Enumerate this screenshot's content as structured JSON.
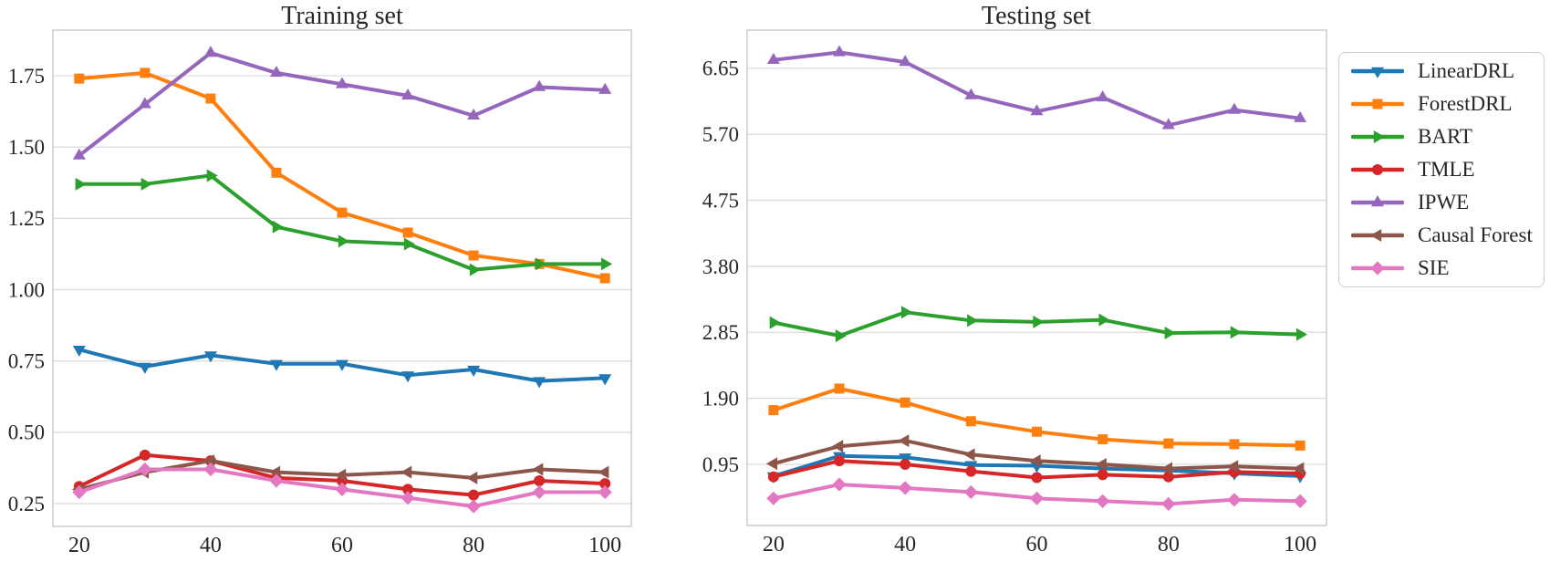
{
  "style": {
    "background": "#ffffff",
    "grid_color": "#dcdcdc",
    "spine_color": "#cccccc",
    "text_color": "#262626"
  },
  "legend": {
    "position": "right-of-charts",
    "entries": [
      {
        "label": "LinearDRL",
        "color": "#1f77b4",
        "marker": "triangle-down"
      },
      {
        "label": "ForestDRL",
        "color": "#ff7f0e",
        "marker": "square"
      },
      {
        "label": "BART",
        "color": "#2ca02c",
        "marker": "triangle-right"
      },
      {
        "label": "TMLE",
        "color": "#d62728",
        "marker": "circle"
      },
      {
        "label": "IPWE",
        "color": "#9467bd",
        "marker": "triangle-up"
      },
      {
        "label": "Causal Forest",
        "color": "#8c564b",
        "marker": "triangle-left"
      },
      {
        "label": "SIE",
        "color": "#e377c2",
        "marker": "diamond"
      }
    ]
  },
  "chart_data": [
    {
      "type": "line",
      "title": "Training set",
      "x": [
        20,
        30,
        40,
        50,
        60,
        70,
        80,
        90,
        100
      ],
      "xtick_values": [
        20,
        40,
        60,
        80,
        100
      ],
      "xtick_labels": [
        "20",
        "40",
        "60",
        "80",
        "100"
      ],
      "ytick_values": [
        0.25,
        0.5,
        0.75,
        1.0,
        1.25,
        1.5,
        1.75
      ],
      "ytick_labels": [
        "0.25",
        "0.50",
        "0.75",
        "1.00",
        "1.25",
        "1.50",
        "1.75"
      ],
      "xlim": [
        16,
        104
      ],
      "ylim": [
        0.17,
        1.91
      ],
      "grid": "horizontal",
      "legend_position": "outside-right",
      "series": [
        {
          "name": "LinearDRL",
          "color": "#1f77b4",
          "marker": "triangle-down",
          "values": [
            0.79,
            0.73,
            0.77,
            0.74,
            0.74,
            0.7,
            0.72,
            0.68,
            0.69
          ]
        },
        {
          "name": "ForestDRL",
          "color": "#ff7f0e",
          "marker": "square",
          "values": [
            1.74,
            1.76,
            1.67,
            1.41,
            1.27,
            1.2,
            1.12,
            1.09,
            1.04
          ]
        },
        {
          "name": "BART",
          "color": "#2ca02c",
          "marker": "triangle-right",
          "values": [
            1.37,
            1.37,
            1.4,
            1.22,
            1.17,
            1.16,
            1.07,
            1.09,
            1.09
          ]
        },
        {
          "name": "TMLE",
          "color": "#d62728",
          "marker": "circle",
          "values": [
            0.31,
            0.42,
            0.4,
            0.34,
            0.33,
            0.3,
            0.28,
            0.33,
            0.32
          ]
        },
        {
          "name": "IPWE",
          "color": "#9467bd",
          "marker": "triangle-up",
          "values": [
            1.47,
            1.65,
            1.83,
            1.76,
            1.72,
            1.68,
            1.61,
            1.71,
            1.7
          ]
        },
        {
          "name": "Causal Forest",
          "color": "#8c564b",
          "marker": "triangle-left",
          "values": [
            0.3,
            0.36,
            0.4,
            0.36,
            0.35,
            0.36,
            0.34,
            0.37,
            0.36
          ]
        },
        {
          "name": "SIE",
          "color": "#e377c2",
          "marker": "diamond",
          "values": [
            0.29,
            0.37,
            0.37,
            0.33,
            0.3,
            0.27,
            0.24,
            0.29,
            0.29
          ]
        }
      ]
    },
    {
      "type": "line",
      "title": "Testing set",
      "x": [
        20,
        30,
        40,
        50,
        60,
        70,
        80,
        90,
        100
      ],
      "xtick_values": [
        20,
        40,
        60,
        80,
        100
      ],
      "xtick_labels": [
        "20",
        "40",
        "60",
        "80",
        "100"
      ],
      "ytick_values": [
        0.95,
        1.9,
        2.85,
        3.8,
        4.75,
        5.7,
        6.65
      ],
      "ytick_labels": [
        "0.95",
        "1.90",
        "2.85",
        "3.80",
        "4.75",
        "5.70",
        "6.65"
      ],
      "xlim": [
        16,
        104
      ],
      "ylim": [
        0.07,
        7.2
      ],
      "grid": "horizontal",
      "legend_position": "outside-right",
      "series": [
        {
          "name": "LinearDRL",
          "color": "#1f77b4",
          "marker": "triangle-down",
          "values": [
            0.78,
            1.07,
            1.05,
            0.94,
            0.93,
            0.89,
            0.86,
            0.82,
            0.78
          ]
        },
        {
          "name": "ForestDRL",
          "color": "#ff7f0e",
          "marker": "square",
          "values": [
            1.73,
            2.04,
            1.84,
            1.57,
            1.42,
            1.31,
            1.25,
            1.24,
            1.22
          ]
        },
        {
          "name": "BART",
          "color": "#2ca02c",
          "marker": "triangle-right",
          "values": [
            2.99,
            2.8,
            3.14,
            3.02,
            3.0,
            3.03,
            2.84,
            2.85,
            2.82
          ]
        },
        {
          "name": "TMLE",
          "color": "#d62728",
          "marker": "circle",
          "values": [
            0.77,
            1.0,
            0.95,
            0.85,
            0.76,
            0.8,
            0.77,
            0.84,
            0.82
          ]
        },
        {
          "name": "IPWE",
          "color": "#9467bd",
          "marker": "triangle-up",
          "values": [
            6.77,
            6.88,
            6.74,
            6.26,
            6.03,
            6.23,
            5.83,
            6.05,
            5.93
          ]
        },
        {
          "name": "Causal Forest",
          "color": "#8c564b",
          "marker": "triangle-left",
          "values": [
            0.96,
            1.21,
            1.29,
            1.09,
            1.0,
            0.95,
            0.89,
            0.92,
            0.89
          ]
        },
        {
          "name": "SIE",
          "color": "#e377c2",
          "marker": "diamond",
          "values": [
            0.46,
            0.66,
            0.61,
            0.55,
            0.46,
            0.42,
            0.38,
            0.44,
            0.42
          ]
        }
      ]
    }
  ]
}
